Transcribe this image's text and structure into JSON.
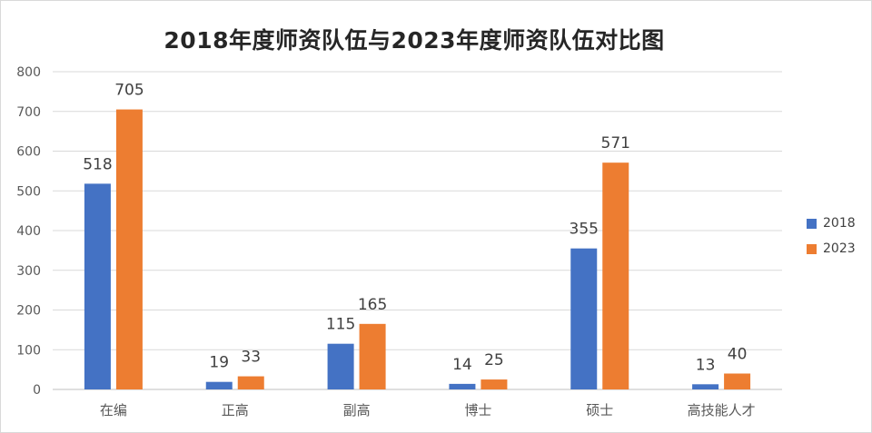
{
  "chart_data": {
    "type": "bar",
    "title": "2018年度师资队伍与2023年度师资队伍对比图",
    "categories": [
      "在编",
      "正高",
      "副高",
      "博士",
      "硕士",
      "高技能人才"
    ],
    "series": [
      {
        "name": "2018",
        "values": [
          518,
          19,
          115,
          14,
          355,
          13
        ],
        "color": "#4472c4"
      },
      {
        "name": "2023",
        "values": [
          705,
          33,
          165,
          25,
          571,
          40
        ],
        "color": "#ed7d31"
      }
    ],
    "ylim": [
      0,
      800
    ],
    "yticks": [
      0,
      100,
      200,
      300,
      400,
      500,
      600,
      700,
      800
    ],
    "grid": true,
    "legend_position": "right"
  }
}
